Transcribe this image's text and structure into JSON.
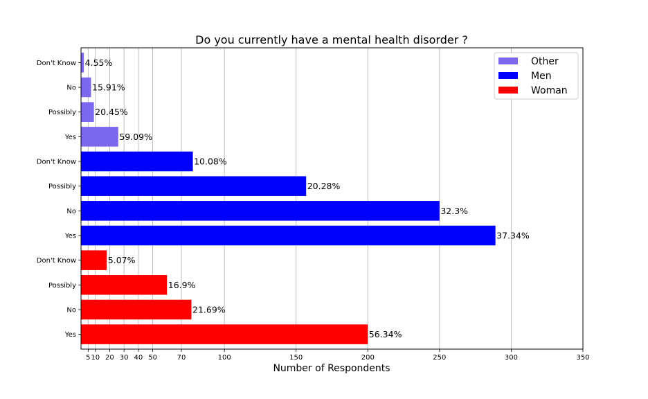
{
  "chart_data": {
    "type": "bar",
    "orientation": "horizontal",
    "title": "Do you currently have a mental health disorder ?",
    "xlabel": "Number of Respondents",
    "ylabel": "",
    "xlim": [
      0,
      350
    ],
    "xticks": [
      5,
      10,
      20,
      30,
      40,
      50,
      70,
      100,
      150,
      200,
      250,
      300,
      350
    ],
    "grid": "vertical",
    "legend_position": "top-right",
    "legend": [
      {
        "name": "Other",
        "color": "#7b68ee"
      },
      {
        "name": "Men",
        "color": "#0000ff"
      },
      {
        "name": "Woman",
        "color": "#ff0000"
      }
    ],
    "bars": [
      {
        "category": "Don't Know",
        "group": "Other",
        "value": 2,
        "label": "4.55%",
        "color": "#7b68ee"
      },
      {
        "category": "No",
        "group": "Other",
        "value": 7,
        "label": "15.91%",
        "color": "#7b68ee"
      },
      {
        "category": "Possibly",
        "group": "Other",
        "value": 9,
        "label": "20.45%",
        "color": "#7b68ee"
      },
      {
        "category": "Yes",
        "group": "Other",
        "value": 26,
        "label": "59.09%",
        "color": "#7b68ee"
      },
      {
        "category": "Don't Know",
        "group": "Men",
        "value": 78,
        "label": "10.08%",
        "color": "#0000ff"
      },
      {
        "category": "Possibly",
        "group": "Men",
        "value": 157,
        "label": "20.28%",
        "color": "#0000ff"
      },
      {
        "category": "No",
        "group": "Men",
        "value": 250,
        "label": "32.3%",
        "color": "#0000ff"
      },
      {
        "category": "Yes",
        "group": "Men",
        "value": 289,
        "label": "37.34%",
        "color": "#0000ff"
      },
      {
        "category": "Don't Know",
        "group": "Woman",
        "value": 18,
        "label": "5.07%",
        "color": "#ff0000"
      },
      {
        "category": "Possibly",
        "group": "Woman",
        "value": 60,
        "label": "16.9%",
        "color": "#ff0000"
      },
      {
        "category": "No",
        "group": "Woman",
        "value": 77,
        "label": "21.69%",
        "color": "#ff0000"
      },
      {
        "category": "Yes",
        "group": "Woman",
        "value": 200,
        "label": "56.34%",
        "color": "#ff0000"
      }
    ]
  }
}
